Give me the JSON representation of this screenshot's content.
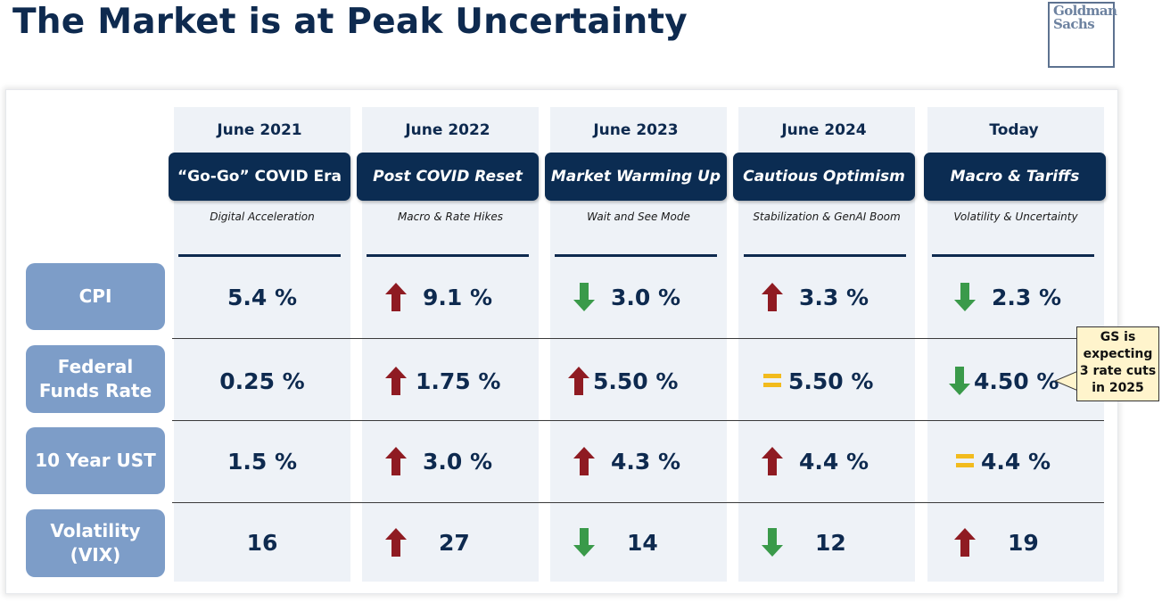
{
  "title": "The Market is at Peak Uncertainty",
  "logo": {
    "line1": "Goldman",
    "line2": "Sachs"
  },
  "columns": [
    {
      "date": "June 2021",
      "era": "“Go-Go” COVID Era",
      "subtitle": "Digital Acceleration"
    },
    {
      "date": "June 2022",
      "era": "Post COVID Reset",
      "subtitle": "Macro & Rate Hikes"
    },
    {
      "date": "June 2023",
      "era": "Market Warming Up",
      "subtitle": "Wait and See Mode"
    },
    {
      "date": "June 2024",
      "era": "Cautious Optimism",
      "subtitle": "Stabilization & GenAI Boom"
    },
    {
      "date": "Today",
      "era": "Macro & Tariffs",
      "subtitle": "Volatility & Uncertainty"
    }
  ],
  "rows": [
    {
      "label": "CPI",
      "cells": [
        {
          "value": "5.4 %",
          "trend": "none"
        },
        {
          "value": "9.1 %",
          "trend": "up"
        },
        {
          "value": "3.0 %",
          "trend": "down"
        },
        {
          "value": "3.3 %",
          "trend": "up"
        },
        {
          "value": "2.3 %",
          "trend": "down"
        }
      ]
    },
    {
      "label": "Federal Funds Rate",
      "label_line1": "Federal",
      "label_line2": "Funds Rate",
      "cells": [
        {
          "value": "0.25 %",
          "trend": "none"
        },
        {
          "value": "1.75 %",
          "trend": "up"
        },
        {
          "value": "5.50 %",
          "trend": "up"
        },
        {
          "value": "5.50 %",
          "trend": "flat"
        },
        {
          "value": "4.50 %",
          "trend": "down"
        }
      ]
    },
    {
      "label": "10 Year UST",
      "cells": [
        {
          "value": "1.5 %",
          "trend": "none"
        },
        {
          "value": "3.0 %",
          "trend": "up"
        },
        {
          "value": "4.3 %",
          "trend": "up"
        },
        {
          "value": "4.4 %",
          "trend": "up"
        },
        {
          "value": "4.4 %",
          "trend": "flat"
        }
      ]
    },
    {
      "label": "Volatility (VIX)",
      "label_line1": "Volatility",
      "label_line2": "(VIX)",
      "cells": [
        {
          "value": "16",
          "trend": "none"
        },
        {
          "value": "27",
          "trend": "up"
        },
        {
          "value": "14",
          "trend": "down"
        },
        {
          "value": "12",
          "trend": "down"
        },
        {
          "value": "19",
          "trend": "up"
        }
      ]
    }
  ],
  "callout": {
    "line1": "GS is",
    "line2": "expecting",
    "line3": "3 rate cuts",
    "line4": "in 2025"
  },
  "colors": {
    "navy": "#0b2c52",
    "up_arrow": "#8f1b22",
    "down_arrow": "#3a9a4a",
    "flat": "#f2bb1d",
    "row_label": "#7d9dc8",
    "column_bg": "#eef2f7"
  },
  "icons": {
    "up": "arrow-up-icon",
    "down": "arrow-down-icon",
    "flat": "equals-icon"
  }
}
